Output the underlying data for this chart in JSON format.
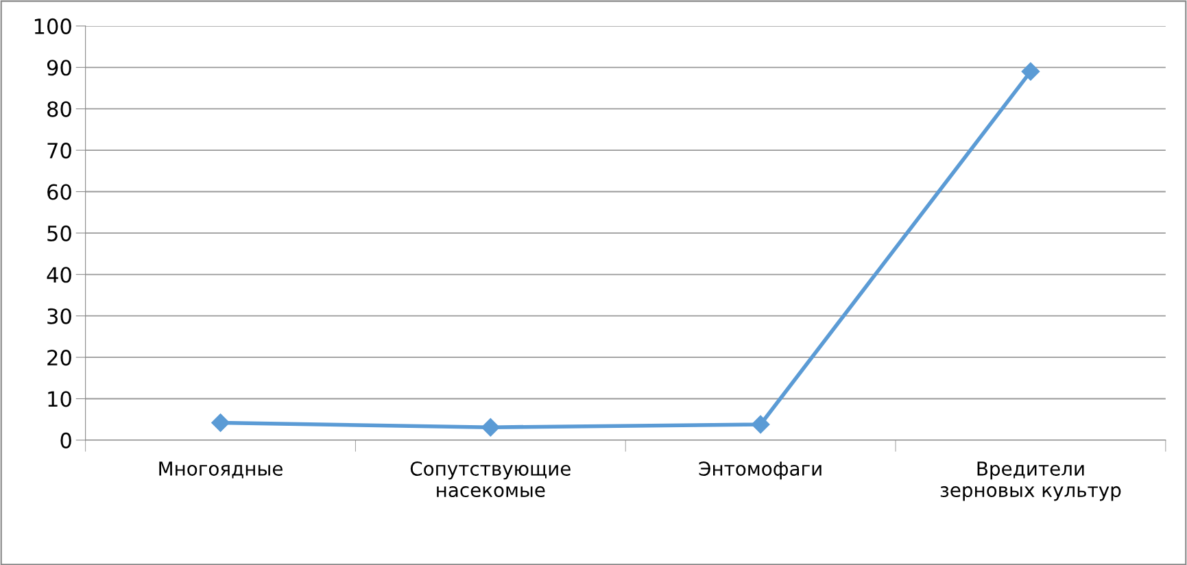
{
  "chart_data": {
    "type": "line",
    "categories": [
      "Многоядные",
      "Сопутствующие\nнасекомые",
      "Энтомофаги",
      "Вредители\nзерновых культур"
    ],
    "series": [
      {
        "color": "#5b9bd5",
        "values": [
          4.2,
          3.1,
          3.8,
          89
        ]
      }
    ],
    "ylim": [
      0,
      100
    ],
    "yticks": [
      0,
      10,
      20,
      30,
      40,
      50,
      60,
      70,
      80,
      90,
      100
    ],
    "grid": "y",
    "marker": "diamond",
    "line_style": "solid",
    "legend": false
  }
}
